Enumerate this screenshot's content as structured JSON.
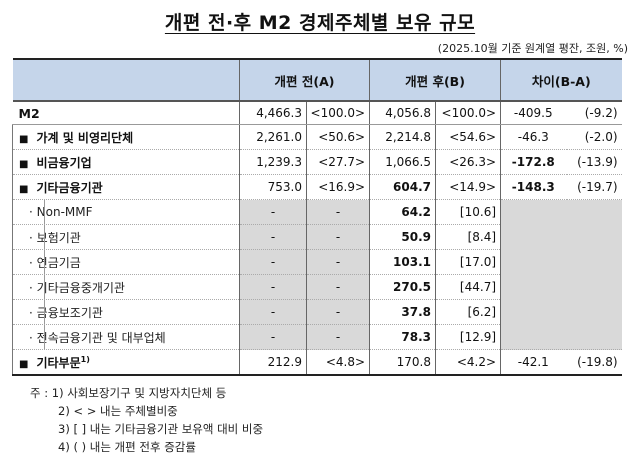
{
  "title": "개편 전·후 M2 경제주체별 보유 규모",
  "unit_note": "(2025.10월 기준 원계열 평잔, 조원, %)",
  "header": {
    "col_a": "개편 전(A)",
    "col_b": "개편 후(B)",
    "col_diff": "차이(B-A)"
  },
  "rows": [
    {
      "label": "M2",
      "a": "4,466.3",
      "a_share": "<100.0>",
      "b": "4,056.8",
      "b_share": "<100.0>",
      "diff": "-409.5",
      "rate": "(-9.2)"
    },
    {
      "label": "가계 및 비영리단체",
      "a": "2,261.0",
      "a_share": "<50.6>",
      "b": "2,214.8",
      "b_share": "<54.6>",
      "diff": "-46.3",
      "rate": "(-2.0)"
    },
    {
      "label": "비금융기업",
      "a": "1,239.3",
      "a_share": "<27.7>",
      "b": "1,066.5",
      "b_share": "<26.3>",
      "diff": "-172.8",
      "rate": "(-13.9)"
    },
    {
      "label": "기타금융기관",
      "a": "753.0",
      "a_share": "<16.9>",
      "b": "604.7",
      "b_share": "<14.9>",
      "diff": "-148.3",
      "rate": "(-19.7)"
    },
    {
      "label": "Non-MMF",
      "a": "-",
      "a_share": "-",
      "b": "64.2",
      "b_share": "[10.6]"
    },
    {
      "label": "보험기관",
      "a": "-",
      "a_share": "-",
      "b": "50.9",
      "b_share": "[8.4]"
    },
    {
      "label": "연금기금",
      "a": "-",
      "a_share": "-",
      "b": "103.1",
      "b_share": "[17.0]"
    },
    {
      "label": "기타금융중개기관",
      "a": "-",
      "a_share": "-",
      "b": "270.5",
      "b_share": "[44.7]"
    },
    {
      "label": "금융보조기관",
      "a": "-",
      "a_share": "-",
      "b": "37.8",
      "b_share": "[6.2]"
    },
    {
      "label": "전속금융기관 및 대부업체",
      "a": "-",
      "a_share": "-",
      "b": "78.3",
      "b_share": "[12.9]"
    },
    {
      "label": "기타부문",
      "label_sup": "1)",
      "a": "212.9",
      "a_share": "<4.8>",
      "b": "170.8",
      "b_share": "<4.2>",
      "diff": "-42.1",
      "rate": "(-19.8)"
    }
  ],
  "bullets": {
    "square": "■",
    "dot": "·"
  },
  "notes": {
    "prefix": "주 : ",
    "items": [
      "1) 사회보장기구 및 지방자치단체 등",
      "2) < > 내는 주체별비중",
      "3) [  ] 내는 기타금융기관 보유액 대비 비중",
      "4) (  ) 내는 개편 전후 증감률"
    ]
  },
  "colors": {
    "header_bg": "#c5d5ea",
    "gray_fill": "#d9d9d9"
  }
}
